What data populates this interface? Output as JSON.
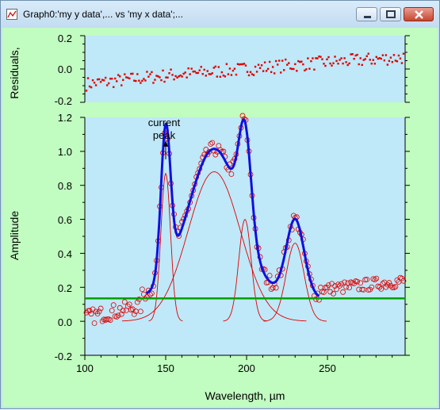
{
  "window": {
    "title": "Graph0:'my y data',... vs 'my x data';...",
    "controls": {
      "minimize": "minimize",
      "maximize": "maximize",
      "close": "close"
    }
  },
  "colors": {
    "graph_background": "#c1fcc0",
    "plot_background": "#bfe8f8",
    "data_marker": "#e00000",
    "fit_curve": "#1010e0",
    "component_peaks": "#e00000",
    "baseline": "#00a000"
  },
  "chart_data": [
    {
      "type": "scatter",
      "panel": "residuals",
      "ylabel": "Residuals,",
      "ylim": [
        -0.2,
        0.2
      ],
      "yticks": [
        "0.2",
        "0.0",
        "-0.2"
      ],
      "xlim": [
        100,
        298
      ],
      "grid": false,
      "series": [
        {
          "marker": "small-dot",
          "color": "#e00000",
          "trend": {
            "x": [
              101,
              150,
              200,
              250,
              297
            ],
            "y": [
              -0.09,
              -0.04,
              0.0,
              0.04,
              0.07
            ]
          },
          "point_count": 200,
          "scatter": 0.04
        }
      ]
    },
    {
      "type": "scatter",
      "panel": "amplitude",
      "xlabel": "Wavelength, µm",
      "ylabel": "Amplitude",
      "xlim": [
        100,
        298
      ],
      "ylim": [
        -0.2,
        1.2
      ],
      "xticks": [
        "100",
        "150",
        "200",
        "250"
      ],
      "yticks": [
        "1.2",
        "1.0",
        "0.8",
        "0.6",
        "0.4",
        "0.2",
        "0.0",
        "-0.2"
      ],
      "grid": false,
      "annotation": {
        "text_line1": "current",
        "text_line2": "peak",
        "x": 150,
        "y": 1.07
      },
      "baseline": {
        "y": 0.135,
        "x": [
          100,
          298
        ],
        "color": "#00a000"
      },
      "peaks": [
        {
          "center": 150,
          "amplitude": 0.87,
          "fwhm": 7
        },
        {
          "center": 180,
          "amplitude": 0.88,
          "fwhm": 38
        },
        {
          "center": 199,
          "amplitude": 0.6,
          "fwhm": 9
        },
        {
          "center": 230,
          "amplitude": 0.46,
          "fwhm": 13
        }
      ],
      "series": [
        {
          "name": "",
          "marker": "open-circle",
          "color": "#e00000",
          "point_count": 200,
          "x_range": [
            101,
            297
          ]
        },
        {
          "name": "",
          "style": "thick-line",
          "color": "#1010e0",
          "x_range": [
            138,
            245
          ]
        },
        {
          "name": "",
          "style": "thin-line",
          "color": "#e00000"
        }
      ]
    }
  ]
}
